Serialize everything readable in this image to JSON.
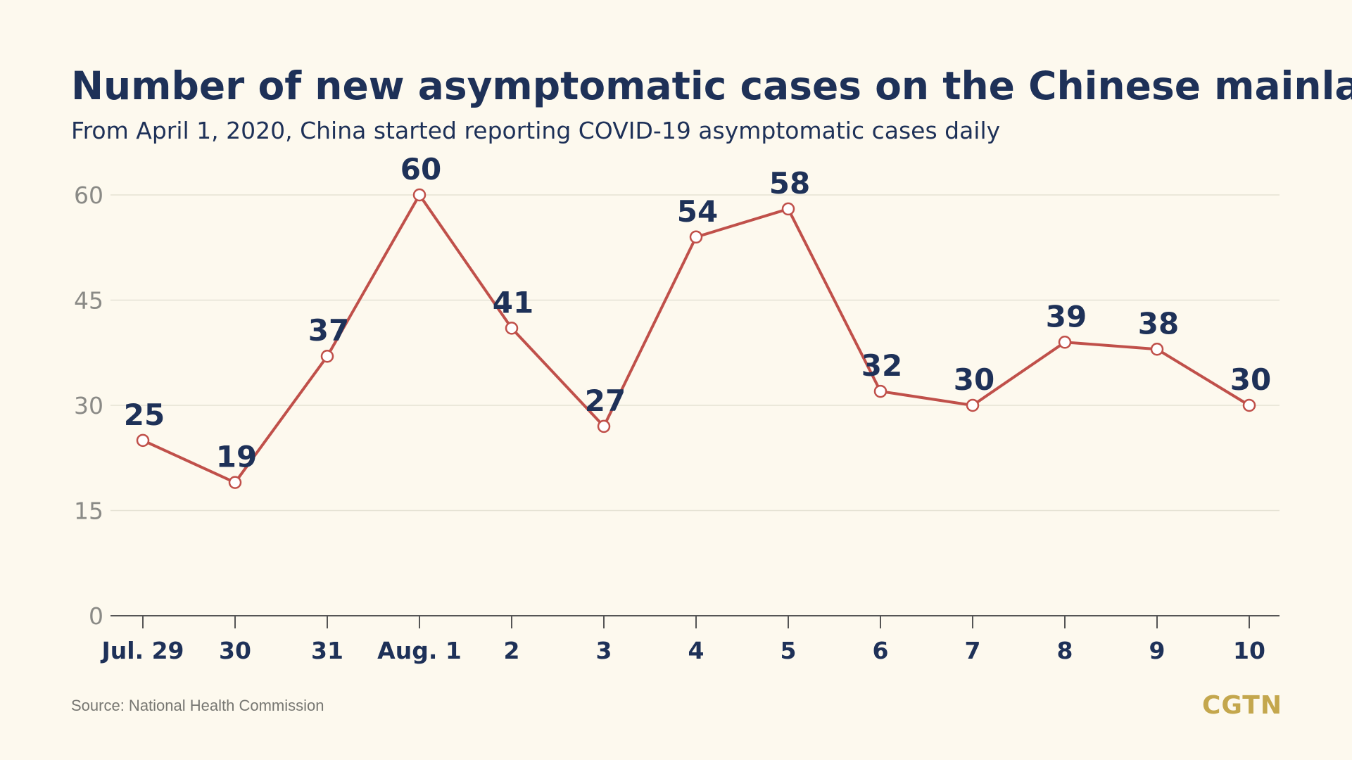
{
  "header": {
    "title": "Number of new asymptomatic cases on the Chinese mainland",
    "subtitle": "From April 1, 2020, China started reporting COVID-19 asymptomatic cases daily"
  },
  "footer": {
    "source": "Source: National Health Commission",
    "brand": "CGTN"
  },
  "colors": {
    "background": "#fdf9ee",
    "title": "#1e3158",
    "line": "#c0504a",
    "marker_fill": "#ffffff",
    "grid": "#e5e2d4",
    "axis": "#555555",
    "brand": "#c4a74d"
  },
  "chart_data": {
    "type": "line",
    "title": "Number of new asymptomatic cases on the Chinese mainland",
    "subtitle": "From April 1, 2020, China started reporting COVID-19 asymptomatic cases daily",
    "categories": [
      "Jul. 29",
      "30",
      "31",
      "Aug. 1",
      "2",
      "3",
      "4",
      "5",
      "6",
      "7",
      "8",
      "9",
      "10"
    ],
    "values": [
      25,
      19,
      37,
      60,
      41,
      27,
      54,
      58,
      32,
      30,
      39,
      38,
      30
    ],
    "data_labels": [
      "25",
      "19",
      "37",
      "60",
      "41",
      "27",
      "54",
      "58",
      "32",
      "30",
      "39",
      "38",
      "30"
    ],
    "yticks": [
      0,
      15,
      30,
      45,
      60
    ],
    "ytick_labels": [
      "0",
      "15",
      "30",
      "45",
      "60"
    ],
    "ylim": [
      0,
      60
    ],
    "xlabel": "",
    "ylabel": "",
    "grid": true,
    "legend": "none"
  }
}
